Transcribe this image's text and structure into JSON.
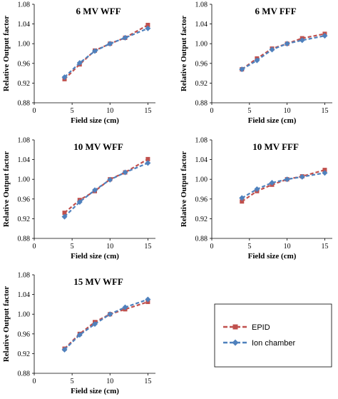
{
  "legend": {
    "entries": [
      {
        "label": "EPID",
        "color": "#c0504d",
        "marker": "square"
      },
      {
        "label": "Ion chamber",
        "color": "#4f81bd",
        "marker": "diamond"
      }
    ]
  },
  "chart_data": [
    {
      "type": "line",
      "title": "6 MV WFF",
      "xlabel": "Field size (cm)",
      "ylabel": "Relative Output factor",
      "xlim": [
        0,
        16
      ],
      "ylim": [
        0.88,
        1.08
      ],
      "xticks": [
        "0",
        "5",
        "10",
        "15"
      ],
      "yticks": [
        "0.88",
        "0.92",
        "0.96",
        "1.00",
        "1.04",
        "1.08"
      ],
      "grid": false,
      "x": [
        4,
        6,
        8,
        10,
        12,
        15
      ],
      "series": [
        {
          "name": "EPID",
          "values": [
            0.928,
            0.958,
            0.986,
            1.0,
            1.012,
            1.038
          ]
        },
        {
          "name": "Ion chamber",
          "values": [
            0.932,
            0.961,
            0.985,
            1.0,
            1.012,
            1.031
          ]
        }
      ]
    },
    {
      "type": "line",
      "title": "6 MV FFF",
      "xlabel": "Field size (cm)",
      "ylabel": "Relative Output factor",
      "xlim": [
        0,
        16
      ],
      "ylim": [
        0.88,
        1.08
      ],
      "xticks": [
        "0",
        "5",
        "10",
        "15"
      ],
      "yticks": [
        "0.88",
        "0.92",
        "0.96",
        "1.00",
        "1.04",
        "1.08"
      ],
      "grid": false,
      "x": [
        4,
        6,
        8,
        10,
        12,
        15
      ],
      "series": [
        {
          "name": "EPID",
          "values": [
            0.948,
            0.97,
            0.99,
            1.0,
            1.011,
            1.02
          ]
        },
        {
          "name": "Ion chamber",
          "values": [
            0.948,
            0.966,
            0.988,
            1.0,
            1.007,
            1.016
          ]
        }
      ]
    },
    {
      "type": "line",
      "title": "10 MV WFF",
      "xlabel": "Field size (cm)",
      "ylabel": "Relative Output factor",
      "xlim": [
        0,
        16
      ],
      "ylim": [
        0.88,
        1.08
      ],
      "xticks": [
        "0",
        "5",
        "10",
        "15"
      ],
      "yticks": [
        "0.88",
        "0.92",
        "0.96",
        "1.00",
        "1.04",
        "1.08"
      ],
      "grid": false,
      "x": [
        4,
        6,
        8,
        10,
        12,
        15
      ],
      "series": [
        {
          "name": "EPID",
          "values": [
            0.932,
            0.958,
            0.976,
            1.0,
            1.014,
            1.041
          ]
        },
        {
          "name": "Ion chamber",
          "values": [
            0.924,
            0.954,
            0.978,
            0.999,
            1.014,
            1.033
          ]
        }
      ]
    },
    {
      "type": "line",
      "title": "10 MV FFF",
      "xlabel": "Field size (cm)",
      "ylabel": "Relative Output factor",
      "xlim": [
        0,
        16
      ],
      "ylim": [
        0.88,
        1.08
      ],
      "xticks": [
        "0",
        "5",
        "10",
        "15"
      ],
      "yticks": [
        "0.88",
        "0.92",
        "0.96",
        "1.00",
        "1.04",
        "1.08"
      ],
      "grid": false,
      "x": [
        4,
        6,
        8,
        10,
        12,
        15
      ],
      "series": [
        {
          "name": "EPID",
          "values": [
            0.955,
            0.976,
            0.989,
            1.0,
            1.006,
            1.019
          ]
        },
        {
          "name": "Ion chamber",
          "values": [
            0.962,
            0.98,
            0.993,
            1.0,
            1.005,
            1.013
          ]
        }
      ]
    },
    {
      "type": "line",
      "title": "15 MV WFF",
      "xlabel": "Field size (cm)",
      "ylabel": "Relative Output factor",
      "xlim": [
        0,
        16
      ],
      "ylim": [
        0.88,
        1.08
      ],
      "xticks": [
        "0",
        "5",
        "10",
        "15"
      ],
      "yticks": [
        "0.88",
        "0.92",
        "0.96",
        "1.00",
        "1.04",
        "1.08"
      ],
      "grid": false,
      "x": [
        4,
        6,
        8,
        10,
        12,
        15
      ],
      "series": [
        {
          "name": "EPID",
          "values": [
            0.93,
            0.96,
            0.984,
            1.0,
            1.01,
            1.025
          ]
        },
        {
          "name": "Ion chamber",
          "values": [
            0.928,
            0.958,
            0.98,
            1.0,
            1.014,
            1.03
          ]
        }
      ]
    }
  ]
}
